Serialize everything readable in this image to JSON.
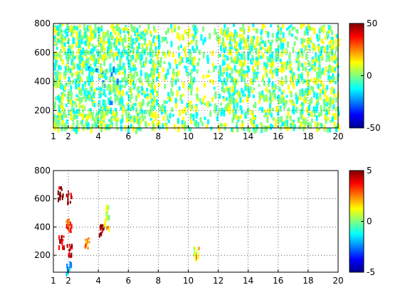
{
  "colors": {
    "background": "#ffffff",
    "axis": "#000000",
    "grid": "#000000",
    "colormap": [
      "#00008f",
      "#0000ff",
      "#0080ff",
      "#00ffff",
      "#80ff80",
      "#ffff00",
      "#ff8000",
      "#ff0000",
      "#800000"
    ]
  },
  "chart_data": [
    {
      "type": "heatmap",
      "title": "",
      "xlabel": "",
      "ylabel": "",
      "xlim": [
        1,
        20
      ],
      "ylim": [
        80,
        800
      ],
      "xticks": [
        1,
        2,
        4,
        6,
        8,
        10,
        12,
        14,
        16,
        18,
        20
      ],
      "yticks": [
        200,
        400,
        600,
        800
      ],
      "grid": true,
      "colorbar": {
        "clim": [
          -50,
          50
        ],
        "ticks": [
          -50,
          0,
          50
        ]
      },
      "description_points": [
        {
          "x": 1.2,
          "y": 780,
          "v": 5
        },
        {
          "x": 2.5,
          "y": 700,
          "v": 3
        },
        {
          "x": 3.3,
          "y": 520,
          "v": -2
        },
        {
          "x": 4.3,
          "y": 400,
          "v": -8
        },
        {
          "x": 4.5,
          "y": 440,
          "v": -10
        },
        {
          "x": 5.4,
          "y": 600,
          "v": 4
        },
        {
          "x": 7.2,
          "y": 520,
          "v": 6
        },
        {
          "x": 10.2,
          "y": 400,
          "v": 2
        },
        {
          "x": 12.5,
          "y": 700,
          "v": 8
        },
        {
          "x": 14.8,
          "y": 300,
          "v": 7
        },
        {
          "x": 17.0,
          "y": 500,
          "v": 5
        },
        {
          "x": 19.6,
          "y": 650,
          "v": 9
        }
      ]
    },
    {
      "type": "heatmap",
      "title": "",
      "xlabel": "",
      "ylabel": "",
      "xlim": [
        1,
        20
      ],
      "ylim": [
        80,
        800
      ],
      "xticks": [
        1,
        2,
        4,
        6,
        8,
        10,
        12,
        14,
        16,
        18,
        20
      ],
      "yticks": [
        200,
        400,
        600,
        800
      ],
      "grid": true,
      "colorbar": {
        "clim": [
          -5,
          5
        ],
        "ticks": [
          -5,
          0,
          5
        ]
      },
      "description_points": [
        {
          "x": 1.45,
          "y": 650,
          "v": 5
        },
        {
          "x": 1.5,
          "y": 300,
          "v": 4
        },
        {
          "x": 2.0,
          "y": 620,
          "v": 4.5
        },
        {
          "x": 2.0,
          "y": 420,
          "v": 3
        },
        {
          "x": 2.05,
          "y": 240,
          "v": 4
        },
        {
          "x": 2.0,
          "y": 120,
          "v": -2
        },
        {
          "x": 3.2,
          "y": 300,
          "v": 2.5
        },
        {
          "x": 4.2,
          "y": 380,
          "v": 5
        },
        {
          "x": 4.5,
          "y": 440,
          "v": 1.5
        },
        {
          "x": 4.6,
          "y": 520,
          "v": 0.5
        },
        {
          "x": 10.5,
          "y": 220,
          "v": 1
        }
      ]
    }
  ]
}
